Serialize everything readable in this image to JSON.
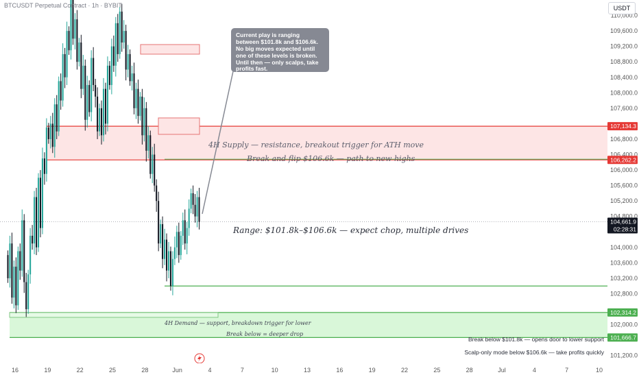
{
  "header": {
    "symbol_title": "BTCUSDT Perpetual Contract · 1h · BYBIT",
    "currency_button": "USDT"
  },
  "price_axis": {
    "ticks": [
      "110,000.0",
      "109,600.0",
      "109,200.0",
      "108,800.0",
      "108,400.0",
      "108,000.0",
      "107,600.0",
      "106,800.0",
      "106,400.0",
      "106,000.0",
      "105,600.0",
      "105,200.0",
      "104,800.0",
      "104,000.0",
      "103,600.0",
      "103,200.0",
      "102,800.0",
      "102,000.0",
      "101,200.0"
    ],
    "tags": [
      {
        "label": "107,134.3",
        "color": "#e53935"
      },
      {
        "label": "106,262.2",
        "color": "#e53935"
      },
      {
        "label": "104,661.9",
        "color": "#131722"
      },
      {
        "label": "02:28:31",
        "color": "#131722"
      },
      {
        "label": "102,314.2",
        "color": "#4caf50"
      },
      {
        "label": "101,666.7",
        "color": "#4caf50"
      }
    ]
  },
  "time_axis": {
    "labels": [
      "16",
      "19",
      "22",
      "25",
      "28",
      "Jun",
      "4",
      "7",
      "10",
      "13",
      "16",
      "19",
      "22",
      "25",
      "28",
      "Jul",
      "4",
      "7",
      "10"
    ]
  },
  "annotations": {
    "supply_line1": "4H Supply — resistance, breakout trigger for ATH move",
    "supply_line2": "Break and flip $106.6k — path to new highs",
    "range": "Range: $101.8k–$106.6k — expect chop, multiple drives",
    "demand_line1": "4H Demand — support, breakdown trigger for lower",
    "demand_line2": "Break below = deeper drop",
    "note_lower": "Break below $101.8k — opens door to lower support",
    "note_scalp": "Scalp-only mode below $106.6k — take profits quickly",
    "callout": [
      "Current play is ranging",
      "between $101.8k and $106.6k.",
      "No big moves expected until",
      "one of these levels is broken.",
      "Until then — only scalps, take",
      "profits fast."
    ]
  },
  "chart_data": {
    "type": "candlestick",
    "title": "BTCUSDT Perpetual Contract · 1h · BYBIT",
    "ylim": [
      101000,
      110400
    ],
    "levels": {
      "supply_top": 107134.3,
      "supply_bottom": 106262.2,
      "last_price": 104661.9,
      "range_low_line": 103000,
      "demand_top": 102314.2,
      "demand_bottom": 101666.7
    },
    "candles_note": "approximate hourly OHLC path, May 16 – Jun 2",
    "path": [
      103800,
      103200,
      104100,
      102700,
      103500,
      102500,
      103900,
      103400,
      104700,
      103100,
      102400,
      103300,
      104300,
      104100,
      105300,
      104000,
      105800,
      104500,
      106300,
      105900,
      107100,
      106800,
      107200,
      106600,
      107700,
      107000,
      108300,
      107800,
      109000,
      108400,
      109600,
      109100,
      110400,
      109400,
      109900,
      108800,
      109300,
      108100,
      108700,
      107300,
      108200,
      107500,
      108900,
      108200,
      107900,
      107000,
      107600,
      106900,
      108100,
      107200,
      108700,
      108200,
      109200,
      108700,
      109800,
      109000,
      110100,
      109300,
      109600,
      108600,
      109000,
      108300,
      108500,
      107600,
      108100,
      107400,
      107900,
      106900,
      107600,
      106500,
      106900,
      105900,
      106400,
      105600,
      105200,
      104100,
      104600,
      103700,
      104200,
      103400,
      103900,
      103000,
      103700,
      104000,
      104400,
      103800,
      104300,
      104700,
      104100,
      104500,
      105000,
      105400,
      105100,
      104800,
      105300,
      104661.9
    ]
  },
  "colors": {
    "up": "#26a69a",
    "down": "#131722",
    "supply_fill": "#fde5e5",
    "supply_line": "#e53935",
    "demand_fill": "#d9f7d9",
    "demand_line": "#4caf50",
    "callout_bg": "#868993"
  }
}
